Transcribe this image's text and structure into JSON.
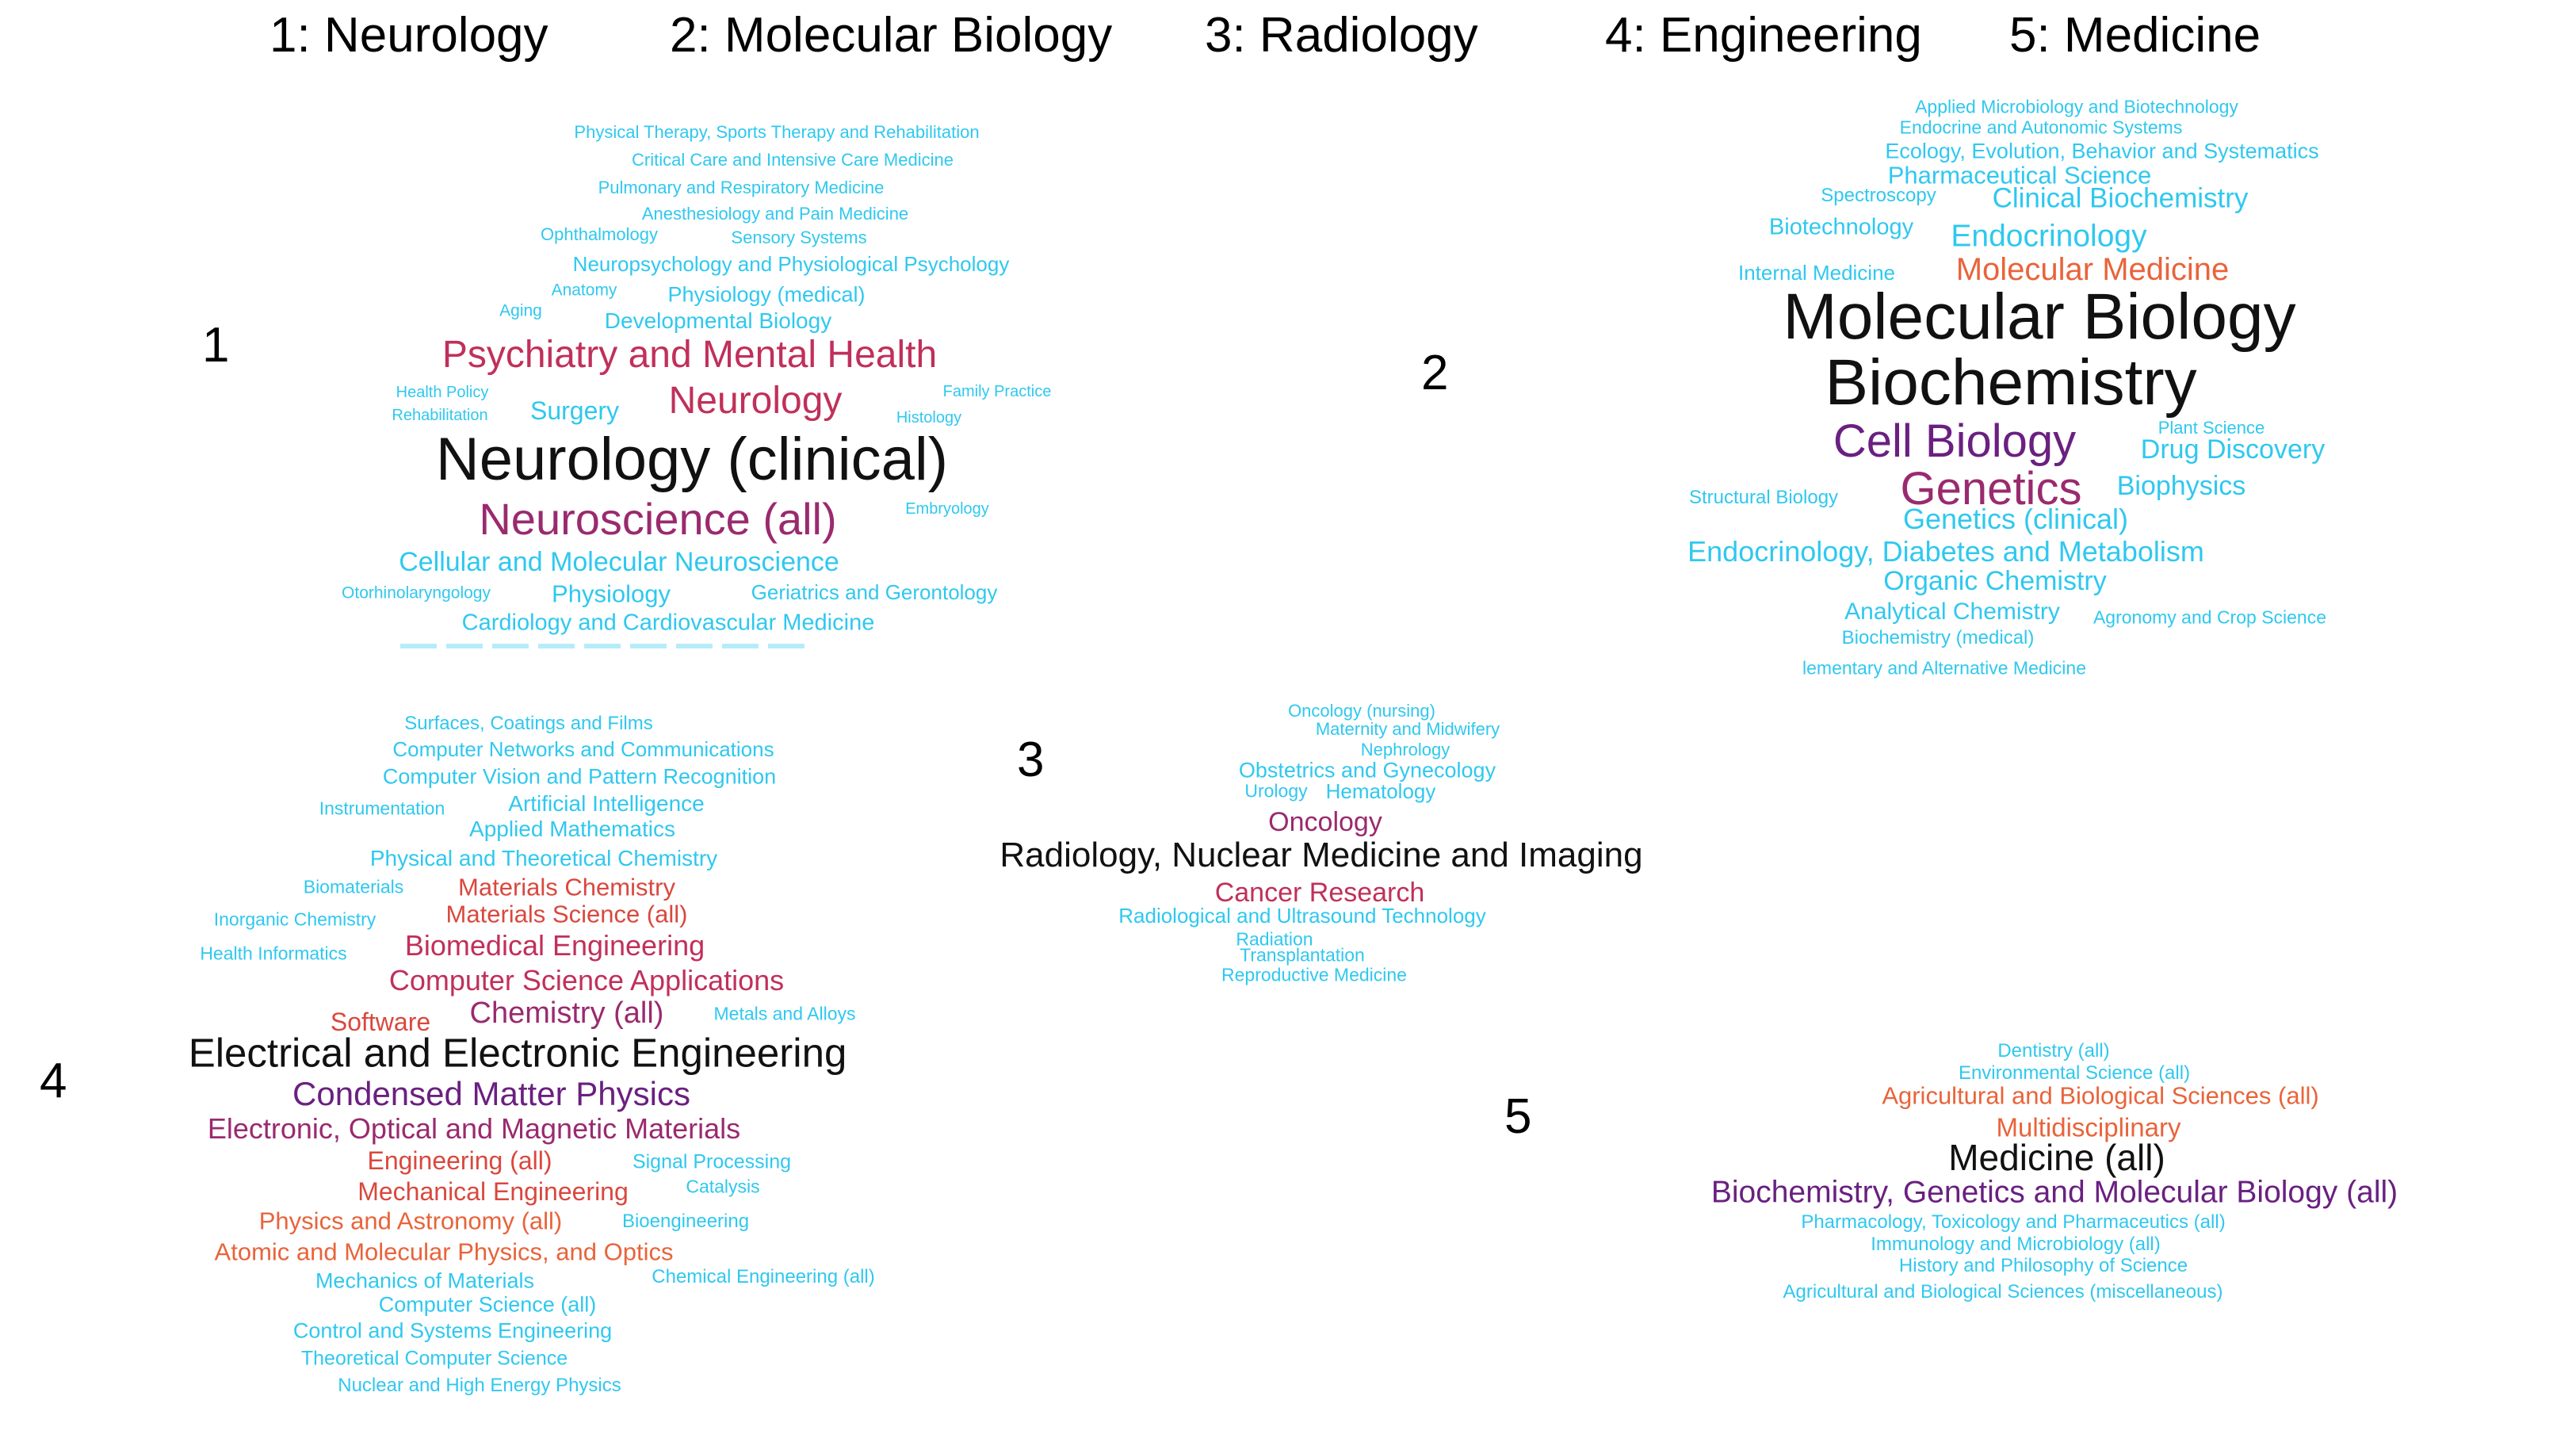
{
  "header": {
    "t1": "1: Neurology",
    "t2": "2: Molecular Biology",
    "t3": "3: Radiology",
    "t4": "4: Engineering",
    "t5": "5: Medicine"
  },
  "clusters": {
    "c1": {
      "label": "1",
      "words": [
        "Physical Therapy, Sports Therapy and Rehabilitation",
        "Critical Care and Intensive Care Medicine",
        "Pulmonary and Respiratory Medicine",
        "Anesthesiology and Pain Medicine",
        "Ophthalmology",
        "Sensory Systems",
        "Neuropsychology and Physiological Psychology",
        "Anatomy",
        "Physiology (medical)",
        "Aging",
        "Developmental Biology",
        "Psychiatry and Mental Health",
        "Health Policy",
        "Rehabilitation",
        "Surgery",
        "Neurology",
        "Histology",
        "Family Practice",
        "Neurology (clinical)",
        "Neuroscience (all)",
        "Embryology",
        "Cellular and Molecular Neuroscience",
        "Otorhinolaryngology",
        "Physiology",
        "Geriatrics and Gerontology",
        "Cardiology and Cardiovascular Medicine"
      ]
    },
    "c2": {
      "label": "2",
      "words": [
        "Applied Microbiology and Biotechnology",
        "Endocrine and Autonomic Systems",
        "Ecology, Evolution, Behavior and Systematics",
        "Pharmaceutical Science",
        "Spectroscopy",
        "Clinical Biochemistry",
        "Biotechnology",
        "Endocrinology",
        "Internal Medicine",
        "Molecular Medicine",
        "Molecular Biology",
        "Biochemistry",
        "Plant Science",
        "Cell Biology",
        "Drug Discovery",
        "Genetics",
        "Biophysics",
        "Structural Biology",
        "Genetics (clinical)",
        "Endocrinology, Diabetes and Metabolism",
        "Organic Chemistry",
        "Analytical Chemistry",
        "Agronomy and Crop Science",
        "Biochemistry (medical)",
        "lementary and Alternative Medicine"
      ]
    },
    "c3": {
      "label": "3",
      "words": [
        "Oncology (nursing)",
        "Maternity and Midwifery",
        "Nephrology",
        "Obstetrics and Gynecology",
        "Urology",
        "Hematology",
        "Oncology",
        "Radiology, Nuclear Medicine and Imaging",
        "Cancer Research",
        "Radiological and Ultrasound Technology",
        "Radiation",
        "Transplantation",
        "Reproductive Medicine"
      ]
    },
    "c4": {
      "label": "4",
      "words": [
        "Surfaces, Coatings and Films",
        "Computer Networks and Communications",
        "Computer Vision and Pattern Recognition",
        "Instrumentation",
        "Artificial Intelligence",
        "Applied Mathematics",
        "Physical and Theoretical Chemistry",
        "Biomaterials",
        "Materials Chemistry",
        "Inorganic Chemistry",
        "Materials Science (all)",
        "Health Informatics",
        "Biomedical Engineering",
        "Computer Science Applications",
        "Software",
        "Chemistry (all)",
        "Metals and Alloys",
        "Electrical and Electronic Engineering",
        "Condensed Matter Physics",
        "Electronic, Optical and Magnetic Materials",
        "Engineering (all)",
        "Signal Processing",
        "Mechanical Engineering",
        "Catalysis",
        "Physics and Astronomy (all)",
        "Bioengineering",
        "Atomic and Molecular Physics, and Optics",
        "Mechanics of Materials",
        "Chemical Engineering (all)",
        "Computer Science (all)",
        "Control and Systems Engineering",
        "Theoretical Computer Science",
        "Nuclear and High Energy Physics"
      ]
    },
    "c5": {
      "label": "5",
      "words": [
        "Dentistry (all)",
        "Environmental Science (all)",
        "Agricultural and Biological Sciences (all)",
        "Multidisciplinary",
        "Medicine (all)",
        "Biochemistry, Genetics and Molecular Biology (all)",
        "Pharmacology, Toxicology and Pharmaceutics (all)",
        "Immunology and Microbiology (all)",
        "History and Philosophy of Science",
        "Agricultural and Biological Sciences (miscellaneous)"
      ]
    }
  },
  "colors": {
    "low": "#2fc8ef",
    "mid_low": "#e8643a",
    "mid": "#c0305a",
    "mid_high": "#9a2a6e",
    "high": "#6a2080",
    "top": "#111111"
  }
}
